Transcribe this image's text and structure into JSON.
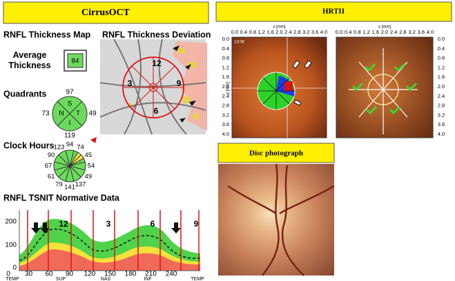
{
  "cirrus": {
    "title": "CirrusOCT",
    "map_title": "RNFL Thickness Map",
    "deviation_title": "RNFL Thickness Deviation",
    "average_label": "Average Thickness",
    "average_value": "84",
    "quadrants_label": "Quadrants",
    "quadrant_values": [
      "97",
      "49",
      "119",
      "73"
    ],
    "quadrant_letters": [
      "S",
      "T",
      "I",
      "N"
    ],
    "clock_label": "Clock Hours",
    "clock_values": [
      "94",
      "74",
      "45",
      "54",
      "49",
      "137",
      "141",
      "79",
      "61",
      "67",
      "90",
      "123"
    ],
    "deviation_clock": [
      "12",
      "3",
      "6",
      "9"
    ],
    "tsnit_title": "RNFL TSNIT Normative Data",
    "tsnit_yticks": [
      "200",
      "100",
      "0"
    ],
    "tsnit_xticks": [
      "0",
      "30",
      "60",
      "90",
      "120",
      "150",
      "180",
      "210",
      "240"
    ],
    "tsnit_regions": [
      "TEMP",
      "SUP",
      "NAS",
      "INF",
      "TEMP"
    ],
    "tsnit_clock": [
      "12",
      "3",
      "6",
      "9"
    ]
  },
  "hrt": {
    "title": "HRTII",
    "axis_ticks": [
      "0.0",
      "0.4",
      "0.8",
      "1.2",
      "1.6",
      "2.0",
      "2.4",
      "2.8",
      "3.2",
      "3.6",
      "4.0"
    ],
    "x_axis_label": "x [mm]",
    "y_axis_label": "y [mm]",
    "timestamp": "13:08"
  },
  "disc": {
    "title": "Disc photograph"
  }
}
